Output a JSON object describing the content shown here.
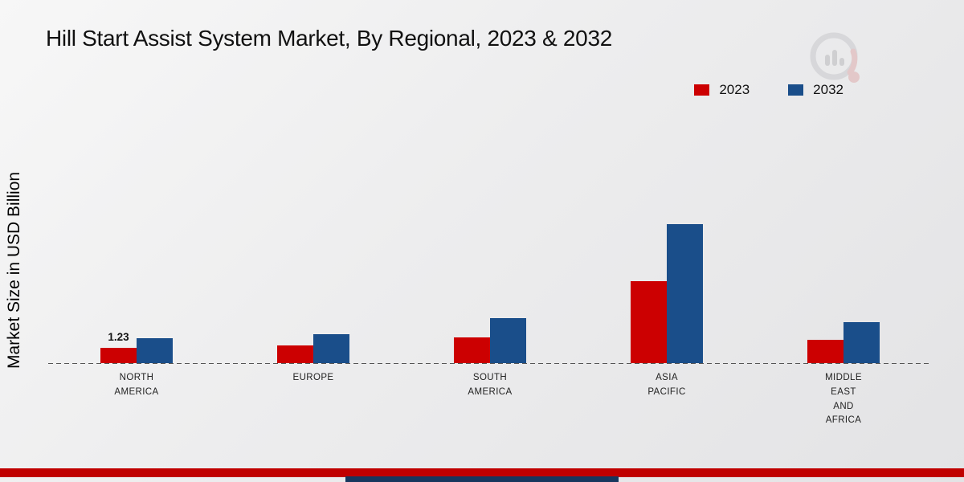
{
  "page": {
    "footer_red_color": "#c00000",
    "footer_blue_color": "#17375e"
  },
  "chart_data": {
    "type": "bar",
    "title": "Hill Start Assist System Market, By Regional, 2023 & 2032",
    "ylabel": "Market Size in USD Billion",
    "xlabel": "",
    "categories": [
      [
        "NORTH",
        "AMERICA"
      ],
      [
        "EUROPE"
      ],
      [
        "SOUTH",
        "AMERICA"
      ],
      [
        "ASIA",
        "PACIFIC"
      ],
      [
        "MIDDLE",
        "EAST",
        "AND",
        "AFRICA"
      ]
    ],
    "series": [
      {
        "name": "2023",
        "color": "#cc0001",
        "values": [
          1.23,
          1.45,
          2.1,
          6.6,
          1.9
        ]
      },
      {
        "name": "2032",
        "color": "#1a4e8a",
        "values": [
          2.0,
          2.3,
          3.6,
          11.2,
          3.3
        ]
      }
    ],
    "annotations": [
      {
        "series": "2023",
        "category_index": 0,
        "text": "1.23"
      }
    ],
    "ylim": [
      0,
      12
    ],
    "grid": false,
    "legend_position": "top-right",
    "baseline_style": "dashed"
  }
}
